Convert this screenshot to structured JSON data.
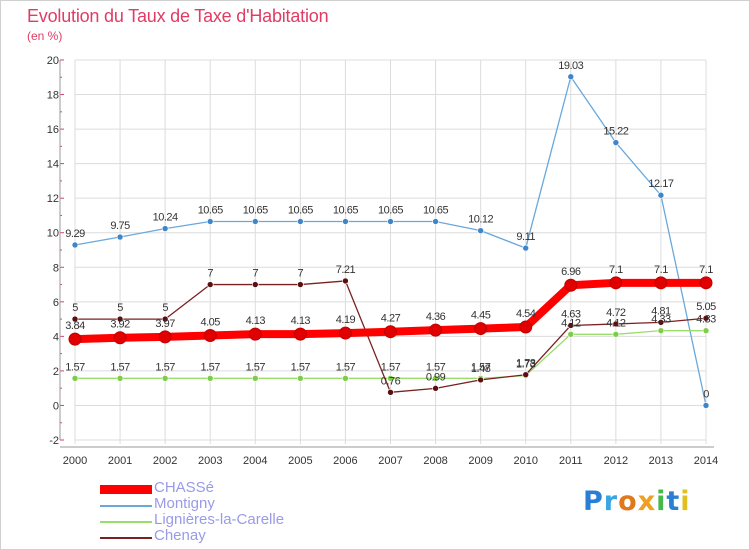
{
  "header": {
    "title": "Evolution du Taux de Taxe d'Habitation",
    "subtitle": "(en %)"
  },
  "logo": {
    "text": "Proxiti",
    "colors": [
      "#2a7fd4",
      "#3aa6e0",
      "#e2781c",
      "#f0a020",
      "#47b84a",
      "#2a7fd4",
      "#e0c020"
    ]
  },
  "chart_data": {
    "type": "line",
    "x": [
      2000,
      2001,
      2002,
      2003,
      2004,
      2005,
      2006,
      2007,
      2008,
      2009,
      2010,
      2011,
      2012,
      2013,
      2014
    ],
    "ylim": [
      -2,
      20
    ],
    "yticks": [
      -2,
      0,
      2,
      4,
      6,
      8,
      10,
      12,
      14,
      16,
      18,
      20
    ],
    "grid": true,
    "legend_position": "bottom-left",
    "series": [
      {
        "name": "Montigny",
        "color": "#6aa8dc",
        "marker": "#3f86c8",
        "values": [
          9.29,
          9.75,
          10.24,
          10.65,
          10.65,
          10.65,
          10.65,
          10.65,
          10.65,
          10.12,
          9.11,
          19.03,
          15.22,
          12.17,
          0
        ],
        "labels": [
          "9.29",
          "9.75",
          "10.24",
          "10.65",
          "10.65",
          "10.65",
          "10.65",
          "10.65",
          "10.65",
          "10.12",
          "9.11",
          "19.03",
          "15.22",
          "12.17",
          "0"
        ]
      },
      {
        "name": "Lignières-la-Carelle",
        "color": "#9ade6a",
        "marker": "#7ccd48",
        "values": [
          1.57,
          1.57,
          1.57,
          1.57,
          1.57,
          1.57,
          1.57,
          1.57,
          1.57,
          1.57,
          1.73,
          4.12,
          4.12,
          4.33,
          4.33
        ],
        "labels": [
          "1.57",
          "1.57",
          "1.57",
          "1.57",
          "1.57",
          "1.57",
          "1.57",
          "1.57",
          "1.57",
          "1.57",
          "1.73",
          "4.12",
          "4.12",
          "4.33",
          "4.33"
        ]
      },
      {
        "name": "Chenay",
        "color": "#7a2020",
        "marker": "#5a1010",
        "values": [
          5,
          5,
          5,
          7,
          7,
          7,
          7.21,
          0.76,
          0.99,
          1.48,
          1.78,
          4.63,
          4.72,
          4.81,
          5.05
        ],
        "labels": [
          "5",
          "5",
          "5",
          "7",
          "7",
          "7",
          "7.21",
          "0.76",
          "0.99",
          "1.48",
          "1.78",
          "4.63",
          "4.72",
          "4.81",
          "5.05"
        ]
      },
      {
        "name": "CHASSé",
        "color": "#ff0000",
        "marker": "#e00000",
        "values": [
          3.84,
          3.92,
          3.97,
          4.05,
          4.13,
          4.13,
          4.19,
          4.27,
          4.36,
          4.45,
          4.54,
          6.96,
          7.1,
          7.1,
          7.1
        ],
        "labels": [
          "3.84",
          "3.92",
          "3.97",
          "4.05",
          "4.13",
          "4.13",
          "4.19",
          "4.27",
          "4.36",
          "4.45",
          "4.54",
          "6.96",
          "7.1",
          "7.1",
          "7.1"
        ]
      }
    ],
    "legend": [
      "CHASSé",
      "Montigny",
      "Lignières-la-Carelle",
      "Chenay"
    ]
  }
}
